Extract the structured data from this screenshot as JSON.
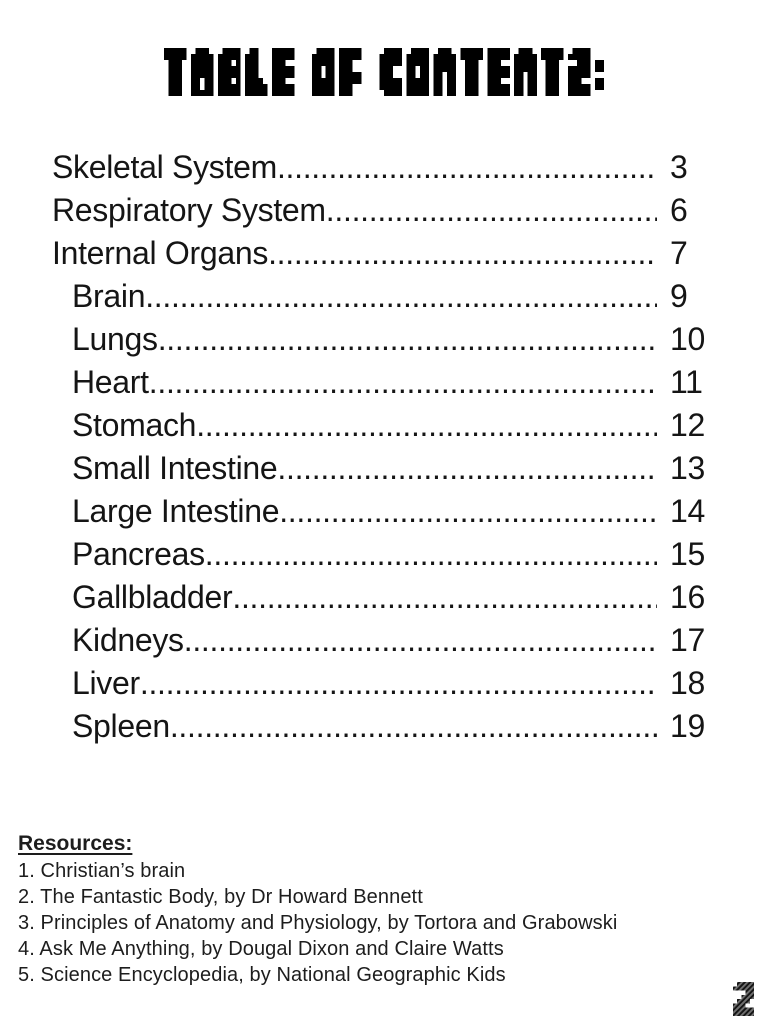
{
  "page": {
    "title": "TABLE OF CONTENTS:",
    "page_number": "2",
    "background_color": "#ffffff",
    "title_color": "#000000",
    "body_text_color": "#151515"
  },
  "toc": {
    "leader_glyph": ".",
    "entries": [
      {
        "label": "Skeletal System",
        "page": "3",
        "indent": 0
      },
      {
        "label": "Respiratory System",
        "page": "6",
        "indent": 0
      },
      {
        "label": "Internal Organs",
        "page": "7",
        "indent": 0
      },
      {
        "label": "Brain",
        "page": "9",
        "indent": 1
      },
      {
        "label": "Lungs",
        "page": "10",
        "indent": 1
      },
      {
        "label": "Heart",
        "page": "11",
        "indent": 1
      },
      {
        "label": "Stomach",
        "page": "12",
        "indent": 1
      },
      {
        "label": "Small Intestine",
        "page": "13",
        "indent": 1
      },
      {
        "label": "Large Intestine",
        "page": "14",
        "indent": 1
      },
      {
        "label": "Pancreas",
        "page": "15",
        "indent": 1
      },
      {
        "label": "Gallbladder",
        "page": "16",
        "indent": 1
      },
      {
        "label": "Kidneys",
        "page": "17",
        "indent": 1
      },
      {
        "label": "Liver",
        "page": "18",
        "indent": 1
      },
      {
        "label": "Spleen",
        "page": "19",
        "indent": 1
      }
    ]
  },
  "resources": {
    "heading": "Resources:",
    "items": [
      "1. Christian’s brain",
      "2. The Fantastic Body, by Dr Howard Bennett",
      "3. Principles of Anatomy and Physiology, by Tortora and Grabowski",
      "4. Ask Me Anything, by Dougal Dixon and Claire Watts",
      "5. Science Encyclopedia, by National Geographic Kids"
    ]
  }
}
